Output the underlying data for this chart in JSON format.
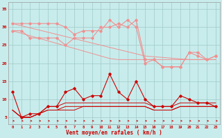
{
  "bg_color": "#c8ecec",
  "grid_color": "#a0c8c8",
  "xlabel": "Vent moyen/en rafales ( km/h )",
  "ylim": [
    3,
    37
  ],
  "yticks": [
    5,
    10,
    15,
    20,
    25,
    30,
    35
  ],
  "x_labels": [
    "0",
    "1",
    "2",
    "3",
    "4",
    "5",
    "6",
    "7",
    "8",
    "9",
    "10",
    "11",
    "12",
    "13",
    "14",
    "15",
    "16",
    "17",
    "18",
    "19",
    "20",
    "21",
    "22",
    "23"
  ],
  "pink_line1": [
    31,
    31,
    31,
    31,
    31,
    31,
    30,
    28,
    29,
    29,
    29,
    32,
    30,
    32,
    30,
    20,
    21,
    19,
    19,
    19,
    23,
    22,
    21,
    22
  ],
  "pink_line2": [
    29,
    29,
    27,
    27,
    27,
    27,
    25,
    27,
    27,
    27,
    30,
    30,
    31,
    30,
    32,
    21,
    21,
    19,
    19,
    19,
    23,
    23,
    21,
    22
  ],
  "trend_line1": [
    31,
    30.4,
    29.8,
    29.2,
    28.6,
    28.0,
    27.4,
    26.8,
    26.2,
    25.6,
    25.0,
    24.4,
    23.8,
    23.2,
    22.6,
    22.0,
    21.8,
    21.6,
    21.4,
    21.2,
    21.0,
    21.0,
    21.0,
    21.0
  ],
  "trend_line2": [
    29,
    28.3,
    27.6,
    26.9,
    26.2,
    25.5,
    24.8,
    24.1,
    23.4,
    22.7,
    22.0,
    21.3,
    21.0,
    21.0,
    21.0,
    21.0,
    21.0,
    21.0,
    21.0,
    21.0,
    21.0,
    21.0,
    21.0,
    21.0
  ],
  "red_spiky": [
    12,
    5,
    6,
    6,
    8,
    8,
    12,
    13,
    10,
    11,
    11,
    17,
    12,
    10,
    15,
    10,
    8,
    8,
    8,
    11,
    10,
    9,
    9,
    8
  ],
  "red_flat1": [
    7,
    5,
    5,
    6,
    7,
    7,
    7,
    7,
    8,
    8,
    8,
    8,
    8,
    8,
    8,
    8,
    7,
    7,
    7,
    8,
    8,
    8,
    8,
    8
  ],
  "red_flat2": [
    7,
    5,
    5,
    6,
    7,
    7,
    8,
    8,
    8,
    8,
    8,
    8,
    8,
    8,
    8,
    8,
    7,
    7,
    7,
    8,
    8,
    8,
    8,
    8
  ],
  "red_flat3": [
    7,
    5,
    5,
    6,
    8,
    8,
    9,
    9,
    9,
    9,
    9,
    9,
    9,
    9,
    9,
    9,
    8,
    8,
    8,
    9,
    9,
    9,
    9,
    9
  ],
  "pink_color": "#f09090",
  "red_color": "#cc0000",
  "arrow_color": "#cc0000"
}
